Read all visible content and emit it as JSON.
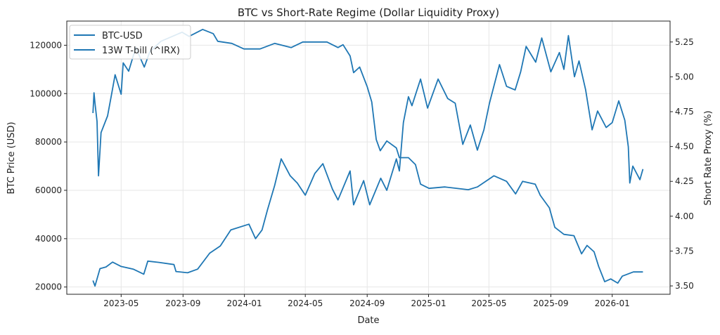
{
  "chart_data": {
    "type": "line",
    "title": "BTC vs Short-Rate Regime (Dollar Liquidity Proxy)",
    "xlabel": "Date",
    "ylabel": "BTC Price (USD)",
    "y2label": "Short Rate Proxy (%)",
    "x_ticks": [
      "2023-05",
      "2023-09",
      "2024-01",
      "2024-05",
      "2024-09",
      "2025-01",
      "2025-05",
      "2025-09",
      "2026-01"
    ],
    "y_ticks": [
      "20000",
      "40000",
      "60000",
      "80000",
      "100000",
      "120000"
    ],
    "y2_ticks": [
      "3.50",
      "3.75",
      "4.00",
      "4.25",
      "4.50",
      "4.75",
      "5.00",
      "5.25"
    ],
    "ylim": [
      17000,
      130000
    ],
    "y2lim": [
      3.44,
      5.4
    ],
    "grid": true,
    "legend_position": "top-left",
    "series_color": "#1f77b4",
    "series": [
      {
        "name": "BTC-USD",
        "axis": "left",
        "points": [
          [
            "2023-03-06",
            22700
          ],
          [
            "2023-03-10",
            20400
          ],
          [
            "2023-03-20",
            27600
          ],
          [
            "2023-04-01",
            28300
          ],
          [
            "2023-04-14",
            30300
          ],
          [
            "2023-05-01",
            28500
          ],
          [
            "2023-05-25",
            27400
          ],
          [
            "2023-06-15",
            25300
          ],
          [
            "2023-06-23",
            30700
          ],
          [
            "2023-07-15",
            30200
          ],
          [
            "2023-08-14",
            29300
          ],
          [
            "2023-08-18",
            26400
          ],
          [
            "2023-09-10",
            25900
          ],
          [
            "2023-09-30",
            27400
          ],
          [
            "2023-10-24",
            34000
          ],
          [
            "2023-11-14",
            37000
          ],
          [
            "2023-12-05",
            43600
          ],
          [
            "2024-01-10",
            46000
          ],
          [
            "2024-01-23",
            40000
          ],
          [
            "2024-02-05",
            43600
          ],
          [
            "2024-02-16",
            52000
          ],
          [
            "2024-03-01",
            62000
          ],
          [
            "2024-03-14",
            73000
          ],
          [
            "2024-04-01",
            66000
          ],
          [
            "2024-04-15",
            63000
          ],
          [
            "2024-05-01",
            58000
          ],
          [
            "2024-05-20",
            67000
          ],
          [
            "2024-06-05",
            71000
          ],
          [
            "2024-06-24",
            60500
          ],
          [
            "2024-07-05",
            56000
          ],
          [
            "2024-07-29",
            68000
          ],
          [
            "2024-08-05",
            54000
          ],
          [
            "2024-08-25",
            64000
          ],
          [
            "2024-09-06",
            54000
          ],
          [
            "2024-09-28",
            65000
          ],
          [
            "2024-10-10",
            60000
          ],
          [
            "2024-10-29",
            73000
          ],
          [
            "2024-11-04",
            68000
          ],
          [
            "2024-11-12",
            88000
          ],
          [
            "2024-11-22",
            98700
          ],
          [
            "2024-11-29",
            95000
          ],
          [
            "2024-12-16",
            106000
          ],
          [
            "2024-12-30",
            94000
          ],
          [
            "2025-01-20",
            106000
          ],
          [
            "2025-02-08",
            98000
          ],
          [
            "2025-02-23",
            96000
          ],
          [
            "2025-03-10",
            79000
          ],
          [
            "2025-03-25",
            87000
          ],
          [
            "2025-04-08",
            76600
          ],
          [
            "2025-04-21",
            85000
          ],
          [
            "2025-05-02",
            96000
          ],
          [
            "2025-05-22",
            112000
          ],
          [
            "2025-06-05",
            103000
          ],
          [
            "2025-06-22",
            101500
          ],
          [
            "2025-07-03",
            109000
          ],
          [
            "2025-07-14",
            119500
          ],
          [
            "2025-08-02",
            113000
          ],
          [
            "2025-08-14",
            123000
          ],
          [
            "2025-09-01",
            109000
          ],
          [
            "2025-09-18",
            117000
          ],
          [
            "2025-09-27",
            110000
          ],
          [
            "2025-10-06",
            124000
          ],
          [
            "2025-10-18",
            107000
          ],
          [
            "2025-10-27",
            113500
          ],
          [
            "2025-11-09",
            101700
          ],
          [
            "2025-11-22",
            85000
          ],
          [
            "2025-12-03",
            92800
          ],
          [
            "2025-12-20",
            86000
          ],
          [
            "2026-01-01",
            88000
          ],
          [
            "2026-01-14",
            97000
          ],
          [
            "2026-01-26",
            89000
          ],
          [
            "2026-02-02",
            78000
          ],
          [
            "2026-02-05",
            63000
          ],
          [
            "2026-02-11",
            70000
          ],
          [
            "2026-02-25",
            64400
          ],
          [
            "2026-03-03",
            68800
          ]
        ]
      },
      {
        "name": "13W T-bill (^IRX)",
        "axis": "right",
        "points": [
          [
            "2023-03-06",
            4.74
          ],
          [
            "2023-03-08",
            4.885
          ],
          [
            "2023-03-10",
            4.81
          ],
          [
            "2023-03-14",
            4.68
          ],
          [
            "2023-03-17",
            4.29
          ],
          [
            "2023-03-22",
            4.6
          ],
          [
            "2023-04-04",
            4.72
          ],
          [
            "2023-04-12",
            4.875
          ],
          [
            "2023-04-19",
            5.015
          ],
          [
            "2023-05-01",
            4.875
          ],
          [
            "2023-05-05",
            5.1
          ],
          [
            "2023-05-16",
            5.04
          ],
          [
            "2023-05-30",
            5.21
          ],
          [
            "2023-06-16",
            5.07
          ],
          [
            "2023-06-27",
            5.18
          ],
          [
            "2023-07-19",
            5.255
          ],
          [
            "2023-08-30",
            5.32
          ],
          [
            "2023-09-13",
            5.29
          ],
          [
            "2023-10-10",
            5.34
          ],
          [
            "2023-10-31",
            5.31
          ],
          [
            "2023-11-09",
            5.255
          ],
          [
            "2023-12-07",
            5.24
          ],
          [
            "2023-12-31",
            5.2
          ],
          [
            "2024-02-01",
            5.2
          ],
          [
            "2024-03-01",
            5.24
          ],
          [
            "2024-04-03",
            5.21
          ],
          [
            "2024-04-26",
            5.25
          ],
          [
            "2024-06-13",
            5.25
          ],
          [
            "2024-07-05",
            5.21
          ],
          [
            "2024-07-15",
            5.23
          ],
          [
            "2024-07-29",
            5.15
          ],
          [
            "2024-08-05",
            5.03
          ],
          [
            "2024-08-17",
            5.07
          ],
          [
            "2024-09-01",
            4.93
          ],
          [
            "2024-09-10",
            4.82
          ],
          [
            "2024-09-19",
            4.55
          ],
          [
            "2024-09-27",
            4.47
          ],
          [
            "2024-10-10",
            4.54
          ],
          [
            "2024-10-29",
            4.49
          ],
          [
            "2024-11-04",
            4.42
          ],
          [
            "2024-11-22",
            4.42
          ],
          [
            "2024-12-06",
            4.37
          ],
          [
            "2024-12-16",
            4.23
          ],
          [
            "2025-01-02",
            4.2
          ],
          [
            "2025-02-02",
            4.21
          ],
          [
            "2025-03-21",
            4.19
          ],
          [
            "2025-04-08",
            4.21
          ],
          [
            "2025-05-11",
            4.29
          ],
          [
            "2025-06-05",
            4.25
          ],
          [
            "2025-06-23",
            4.16
          ],
          [
            "2025-07-07",
            4.25
          ],
          [
            "2025-08-01",
            4.23
          ],
          [
            "2025-08-11",
            4.15
          ],
          [
            "2025-08-29",
            4.06
          ],
          [
            "2025-09-09",
            3.92
          ],
          [
            "2025-09-27",
            3.87
          ],
          [
            "2025-10-17",
            3.86
          ],
          [
            "2025-11-01",
            3.73
          ],
          [
            "2025-11-12",
            3.79
          ],
          [
            "2025-11-26",
            3.745
          ],
          [
            "2025-12-05",
            3.64
          ],
          [
            "2025-12-17",
            3.53
          ],
          [
            "2025-12-29",
            3.55
          ],
          [
            "2026-01-12",
            3.52
          ],
          [
            "2026-01-21",
            3.57
          ],
          [
            "2026-02-12",
            3.6
          ],
          [
            "2026-03-03",
            3.6
          ]
        ]
      }
    ]
  }
}
